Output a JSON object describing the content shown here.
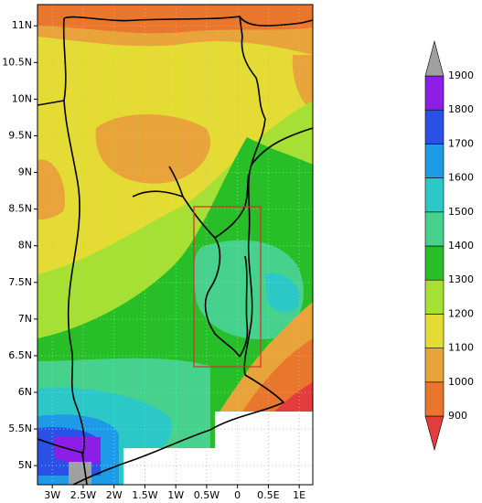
{
  "map": {
    "xlim": [
      -3.24,
      1.22
    ],
    "ylim": [
      4.74,
      11.29
    ],
    "lon_ticks": [
      {
        "value": -3,
        "label": "3W"
      },
      {
        "value": -2.5,
        "label": "2.5W"
      },
      {
        "value": -2,
        "label": "2W"
      },
      {
        "value": -1.5,
        "label": "1.5W"
      },
      {
        "value": -1,
        "label": "1W"
      },
      {
        "value": -0.5,
        "label": "0.5W"
      },
      0,
      {
        "value": 0.5,
        "label": "0.5E"
      },
      {
        "value": 1,
        "label": "1E"
      }
    ],
    "lat_ticks": [
      {
        "value": 5,
        "label": "5N"
      },
      {
        "value": 5.5,
        "label": "5.5N"
      },
      {
        "value": 6,
        "label": "6N"
      },
      {
        "value": 6.5,
        "label": "6.5N"
      },
      {
        "value": 7,
        "label": "7N"
      },
      {
        "value": 7.5,
        "label": "7.5N"
      },
      {
        "value": 8,
        "label": "8N"
      },
      {
        "value": 8.5,
        "label": "8.5N"
      },
      {
        "value": 9,
        "label": "9N"
      },
      {
        "value": 9.5,
        "label": "9.5N"
      },
      {
        "value": 10,
        "label": "10N"
      },
      {
        "value": 10.5,
        "label": "10.5N"
      },
      {
        "value": 11,
        "label": "11N"
      }
    ],
    "grid": true
  },
  "colorbar": {
    "levels": [
      900,
      1000,
      1100,
      1200,
      1300,
      1400,
      1500,
      1600,
      1700,
      1800,
      1900
    ],
    "colors": [
      "#e23c3c",
      "#e8762c",
      "#e8a43a",
      "#e4dc34",
      "#a6e034",
      "#28be28",
      "#46d28c",
      "#2cc8c8",
      "#1e9ae6",
      "#2a50e6",
      "#8c1ee6",
      "#a0a0a0"
    ]
  }
}
